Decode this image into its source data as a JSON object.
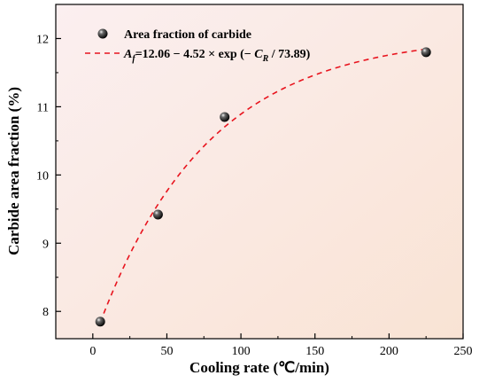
{
  "chart_data": {
    "type": "scatter",
    "xlabel": "Cooling rate (℃/min)",
    "ylabel": "Carbide area fraction (%)",
    "xlim": [
      -25,
      250
    ],
    "ylim": [
      7.6,
      12.5
    ],
    "x_ticks": [
      0,
      50,
      100,
      150,
      200,
      250
    ],
    "y_ticks": [
      8,
      9,
      10,
      11,
      12
    ],
    "grid": false,
    "legend_position": "top-left",
    "background_gradient": [
      "#fbeff0",
      "#f9e3d4"
    ],
    "series": [
      {
        "name": "Area fraction of carbide",
        "kind": "scatter",
        "color": "#000000",
        "x": [
          5,
          44,
          89,
          225
        ],
        "y": [
          7.85,
          9.42,
          10.85,
          11.8
        ]
      },
      {
        "name": "fit",
        "kind": "dashed-line",
        "color": "#e8141e",
        "x_range": [
          5,
          225
        ],
        "function": {
          "a": 12.06,
          "b": 4.52,
          "c": 73.89
        }
      }
    ],
    "legend": {
      "scatter_label": "Area fraction of carbide",
      "fit_label": {
        "A": "A",
        "sub_f": "f",
        "eq": "=12.06 − 4.52 × exp (− ",
        "C": "C",
        "sub_R": "R",
        "end": " / 73.89)"
      }
    }
  }
}
